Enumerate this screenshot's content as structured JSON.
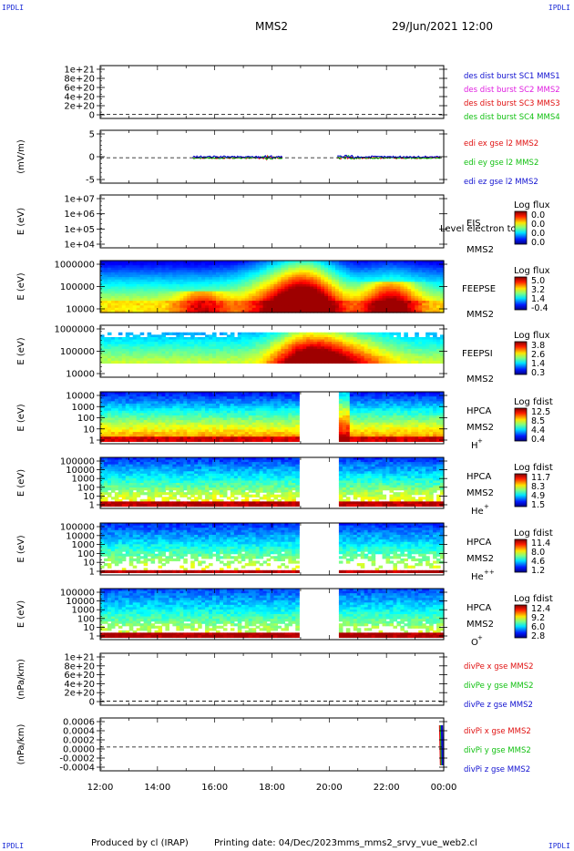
{
  "corner_label": "IPDLI",
  "header": {
    "mission": "MMS2",
    "datetime": "29/Jun/2021 12:00"
  },
  "footer": {
    "produced": "Produced by cl (IRAP)",
    "printing": "Printing date: 04/Dec/2023",
    "file": "mms_mms2_srvy_vue_web2.cl"
  },
  "chart_data": {
    "type": "multi-panel",
    "x_ticks": [
      "12:00",
      "14:00",
      "16:00",
      "18:00",
      "20:00",
      "22:00",
      "00:00"
    ],
    "panels": [
      {
        "id": "dist",
        "yticks": [
          "1e+21",
          "8e+20",
          "6e+20",
          "4e+20",
          "2e+20",
          "0"
        ],
        "legend": [
          {
            "text": "des dist burst SC1 MMS1",
            "color": "#1010d0"
          },
          {
            "text": "des dist burst SC2 MMS2",
            "color": "#e020e0"
          },
          {
            "text": "des dist burst SC3 MMS3",
            "color": "#e01010"
          },
          {
            "text": "des dist burst SC4 MMS4",
            "color": "#10c010"
          }
        ]
      },
      {
        "id": "edi",
        "ylabel": "(mV/m)",
        "yticks": [
          "5",
          "0",
          "-5"
        ],
        "legend": [
          {
            "text": "edi ex gse l2 MMS2",
            "color": "#e01010"
          },
          {
            "text": "edi ey gse l2 MMS2",
            "color": "#10c010"
          },
          {
            "text": "edi ez gse l2 MMS2",
            "color": "#1010d0"
          }
        ]
      },
      {
        "id": "eis",
        "ylabel": "E (eV)",
        "yticks": [
          "1e+07",
          "1e+06",
          "1e+05",
          "1e+04"
        ],
        "inst": "EIS",
        "sc": "MMS2",
        "extra": "Level electron to",
        "cb_title": "Log flux",
        "cb_ticks": [
          "0.0",
          "0.0",
          "0.0",
          "0.0"
        ]
      },
      {
        "id": "feepse",
        "ylabel": "E (eV)",
        "yticks": [
          "1000000",
          "100000",
          "10000"
        ],
        "inst": "FEEPSE",
        "sc": "MMS2",
        "cb_title": "Log flux",
        "cb_ticks": [
          "5.0",
          "3.2",
          "1.4",
          "-0.4"
        ]
      },
      {
        "id": "feepsi",
        "ylabel": "E (eV)",
        "yticks": [
          "1000000",
          "100000",
          "10000"
        ],
        "inst": "FEEPSI",
        "sc": "MMS2",
        "cb_title": "Log flux",
        "cb_ticks": [
          "3.8",
          "2.6",
          "1.4",
          "0.3"
        ]
      },
      {
        "id": "hpca_h",
        "ylabel": "E (eV)",
        "yticks": [
          "10000",
          "1000",
          "100",
          "10",
          "1"
        ],
        "inst": "HPCA",
        "sc": "MMS2",
        "species": "H",
        "charge": "+",
        "cb_title": "Log fdist",
        "cb_ticks": [
          "12.5",
          "8.5",
          "4.4",
          "0.4"
        ]
      },
      {
        "id": "hpca_he",
        "ylabel": "E (eV)",
        "yticks": [
          "100000",
          "10000",
          "1000",
          "100",
          "10",
          "1"
        ],
        "inst": "HPCA",
        "sc": "MMS2",
        "species": "He",
        "charge": "+",
        "cb_title": "Log fdist",
        "cb_ticks": [
          "11.7",
          "8.3",
          "4.9",
          "1.5"
        ]
      },
      {
        "id": "hpca_hepp",
        "ylabel": "E (eV)",
        "yticks": [
          "100000",
          "10000",
          "1000",
          "100",
          "10",
          "1"
        ],
        "inst": "HPCA",
        "sc": "MMS2",
        "species": "He",
        "charge": "++",
        "cb_title": "Log fdist",
        "cb_ticks": [
          "11.4",
          "8.0",
          "4.6",
          "1.2"
        ]
      },
      {
        "id": "hpca_o",
        "ylabel": "E (eV)",
        "yticks": [
          "100000",
          "10000",
          "1000",
          "100",
          "10",
          "1"
        ],
        "inst": "HPCA",
        "sc": "MMS2",
        "species": "O",
        "charge": "+",
        "cb_title": "Log fdist",
        "cb_ticks": [
          "12.4",
          "9.2",
          "6.0",
          "2.8"
        ]
      },
      {
        "id": "divpe",
        "ylabel": "(nPa/km)",
        "yticks": [
          "1e+21",
          "8e+20",
          "6e+20",
          "4e+20",
          "2e+20",
          "0"
        ],
        "legend": [
          {
            "text": "divPe x gse MMS2",
            "color": "#e01010"
          },
          {
            "text": "divPe y gse MMS2",
            "color": "#10c010"
          },
          {
            "text": "divPe z gse MMS2",
            "color": "#1010d0"
          }
        ]
      },
      {
        "id": "divpi",
        "ylabel": "(nPa/km)",
        "yticks": [
          "0.0006",
          "0.0004",
          "0.0002",
          "0.0000",
          "-0.0002",
          "-0.0004"
        ],
        "legend": [
          {
            "text": "divPi x gse MMS2",
            "color": "#e01010"
          },
          {
            "text": "divPi y gse MMS2",
            "color": "#10c010"
          },
          {
            "text": "divPi z gse MMS2",
            "color": "#1010d0"
          }
        ]
      }
    ]
  }
}
